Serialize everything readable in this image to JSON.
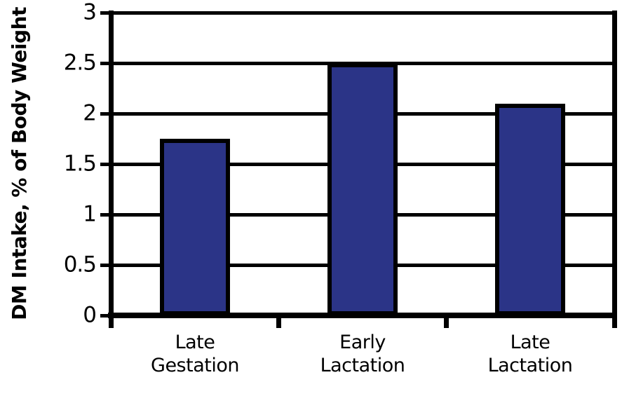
{
  "figure": {
    "background": "#ffffff",
    "line_color": "#000000",
    "bar_fill": "#2B3487",
    "bar_border": "#000000"
  },
  "chart_data": {
    "type": "bar",
    "title": "",
    "xlabel": "",
    "ylabel": "DM Intake, % of Body Weight",
    "categories": [
      "Late Gestation",
      "Early Lactation",
      "Late Lactation"
    ],
    "category_label_lines": [
      [
        "Late",
        "Gestation"
      ],
      [
        "Early",
        "Lactation"
      ],
      [
        "Late",
        "Lactation"
      ]
    ],
    "values": [
      1.75,
      2.5,
      2.1
    ],
    "ylim": [
      0,
      3
    ],
    "ytick_step": 0.5,
    "ytick_labels": [
      "0",
      "0.5",
      "1",
      "1.5",
      "2",
      "2.5",
      "3"
    ],
    "grid": "horizontal",
    "legend": "none"
  }
}
